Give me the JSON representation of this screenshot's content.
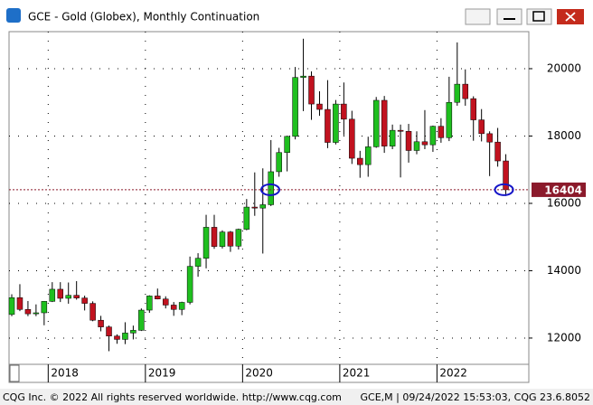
{
  "window_title": "GCE - Gold (Globex), Monthly Continuation",
  "status_left": "CQG Inc. © 2022 All rights reserved worldwide. http://www.cqg.com",
  "status_right": "GCE,M | 09/24/2022 15:53:03, CQG 23.6.8052",
  "chart_data": {
    "type": "candlestick",
    "x_labels": [
      "2018",
      "2019",
      "2020",
      "2021",
      "2022"
    ],
    "open": [
      12700,
      13200,
      12850,
      12720,
      12750,
      13090,
      13450,
      13180,
      13270,
      13190,
      13030,
      12530,
      12330,
      12060,
      11960,
      12150,
      12230,
      12830,
      13250,
      13160,
      12980,
      12850,
      13060,
      14130,
      14370,
      15290,
      14720,
      15150,
      14730,
      15230,
      15890,
      15860,
      15960,
      16940,
      17510,
      17990,
      19740,
      19780,
      18950,
      18790,
      17810,
      18950,
      18500,
      17340,
      17150,
      17680,
      19060,
      17700,
      18170,
      18140,
      17570,
      17830,
      17740,
      18290,
      17950,
      19000,
      19540,
      19110,
      18480,
      18070,
      17820,
      17260
    ],
    "high": [
      13300,
      13600,
      13100,
      13000,
      13100,
      13660,
      13660,
      13650,
      13690,
      13260,
      13090,
      12660,
      12370,
      12110,
      12470,
      12370,
      12880,
      13270,
      13470,
      13240,
      13070,
      13080,
      14420,
      14520,
      15660,
      15660,
      15200,
      15180,
      15250,
      16130,
      16920,
      17040,
      17880,
      17650,
      18010,
      20050,
      20890,
      19920,
      19330,
      19660,
      19070,
      19590,
      18750,
      17560,
      17980,
      19160,
      19190,
      18340,
      18340,
      18360,
      18140,
      18770,
      18310,
      18530,
      19760,
      20780,
      19980,
      19180,
      18800,
      18140,
      18240,
      17460
    ],
    "low": [
      12650,
      12800,
      12650,
      12650,
      12380,
      13070,
      13070,
      13020,
      13140,
      12820,
      12500,
      12200,
      11610,
      11830,
      11820,
      11960,
      12210,
      12750,
      13150,
      12880,
      12660,
      12680,
      13000,
      13820,
      14070,
      14650,
      14660,
      14560,
      14630,
      15200,
      15630,
      14510,
      15920,
      16790,
      16950,
      17900,
      18740,
      18480,
      18600,
      17640,
      17750,
      18020,
      17170,
      16760,
      16790,
      17650,
      17500,
      17610,
      16770,
      17210,
      17460,
      17610,
      17530,
      17800,
      17850,
      18900,
      18900,
      17860,
      17840,
      16810,
      17090,
      16220
    ],
    "close": [
      13200,
      12850,
      12720,
      12750,
      13090,
      13450,
      13180,
      13270,
      13190,
      13030,
      12530,
      12330,
      12060,
      11960,
      12150,
      12230,
      12830,
      13250,
      13160,
      12980,
      12850,
      13060,
      14130,
      14370,
      15290,
      14720,
      15150,
      14730,
      15230,
      15890,
      15860,
      15960,
      16940,
      17510,
      17990,
      19740,
      19780,
      18950,
      18790,
      17810,
      18950,
      18500,
      17340,
      17150,
      17680,
      19060,
      17700,
      18170,
      18140,
      17570,
      17830,
      17740,
      18290,
      17950,
      19000,
      19540,
      19110,
      18480,
      18070,
      17820,
      17260,
      16404
    ],
    "up_color": "#1fbf1f",
    "down_color": "#c1121f",
    "last_price": 16404,
    "last_price_color": "#8b1a2b",
    "ylim": [
      11220,
      21100
    ],
    "yticks": [
      12000,
      14000,
      16000,
      18000,
      20000
    ],
    "grid": true
  }
}
